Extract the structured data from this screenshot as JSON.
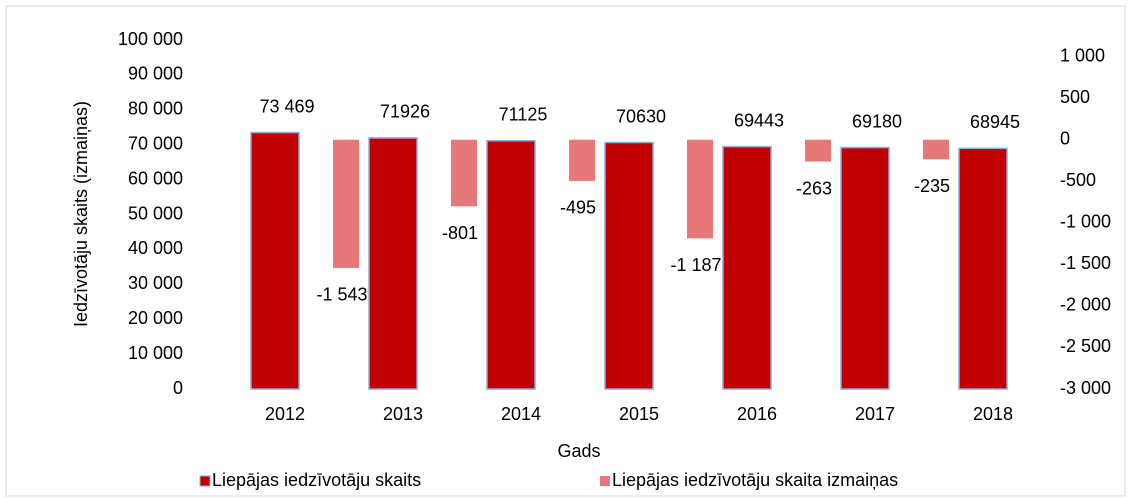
{
  "chart_data": {
    "type": "bar",
    "x_label": "Gads",
    "y_label": "Iedzīvotāju skaits (izmaiņas)",
    "categories": [
      "2012",
      "2013",
      "2014",
      "2015",
      "2016",
      "2017",
      "2018"
    ],
    "series": [
      {
        "name": "Liepājas iedzīvotāju skaits",
        "color": "#c00000",
        "values": [
          73469,
          71926,
          71125,
          70630,
          69443,
          69180,
          68945
        ],
        "value_labels": [
          "73 469",
          "71926",
          "71125",
          "70630",
          "69443",
          "69180",
          "68945"
        ]
      },
      {
        "name": "Liepājas iedzīvotāju skaita izmaiņas",
        "color": "#e6787a",
        "axis": "y2",
        "values": [
          null,
          -1543,
          -801,
          -495,
          -1187,
          -263,
          -235
        ],
        "value_labels": [
          null,
          "-1 543",
          "-801",
          "-495",
          "-1 187",
          "-263",
          "-235"
        ]
      }
    ],
    "ylim": [
      0,
      100000
    ],
    "yticks": [
      0,
      {
        "value": 10000,
        "label": "10 000"
      },
      {
        "value": 20000,
        "label": "20 000"
      },
      {
        "value": 30000,
        "label": "30 000"
      },
      {
        "value": 40000,
        "label": "40 000"
      },
      {
        "value": 50000,
        "label": "50 000"
      },
      {
        "value": 60000,
        "label": "60 000"
      },
      {
        "value": 70000,
        "label": "70 000"
      },
      {
        "value": 80000,
        "label": "80 000"
      },
      {
        "value": 90000,
        "label": "90 000"
      },
      {
        "value": 100000,
        "label": "100 000"
      }
    ],
    "y2lim": [
      -3000,
      1200
    ],
    "y2ticks": [
      {
        "value": -3000,
        "label": "-3 000"
      },
      {
        "value": -2500,
        "label": "-2 500"
      },
      {
        "value": -2000,
        "label": "-2 000"
      },
      {
        "value": -1500,
        "label": "-1 500"
      },
      {
        "value": -1000,
        "label": "-1 000"
      },
      -500,
      0,
      500,
      {
        "value": 1000,
        "label": "1 000"
      }
    ],
    "legend": "bottom"
  }
}
